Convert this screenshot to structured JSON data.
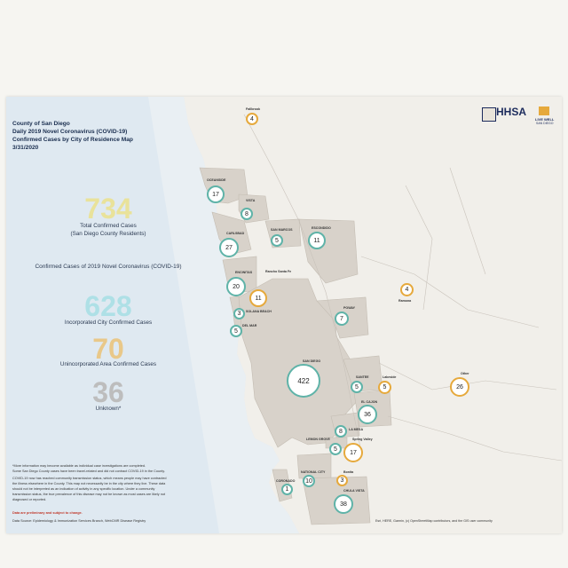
{
  "header": {
    "line1": "County of San Diego",
    "line2": "Daily 2019 Novel Coronavirus (COVID-19)",
    "line3": "Confirmed Cases by City of Residence Map",
    "line4": "3/31/2020"
  },
  "stats": {
    "total": "734",
    "total_caption_1": "Total Confirmed Cases",
    "total_caption_2": "(San Diego County Residents)",
    "section_title": "Confirmed Cases of 2019 Novel Coronavirus (COVID-19)",
    "incorporated": "628",
    "incorporated_caption": "Incorporated City Confirmed Cases",
    "unincorporated": "70",
    "unincorporated_caption": "Unincorporated Area Confirmed Cases",
    "unknown": "36",
    "unknown_caption": "Unknown*"
  },
  "notes": {
    "n1": "*More information may become available as individual case investigations are completed.",
    "n2": "Some San Diego County cases have been travel-related and did not contract COVID-19 in the County.",
    "n3": "COVID-19 now has reached community transmission status, which means people may have contracted",
    "n4": "the illness elsewhere in the County. This map not necessarily be in the city where they live. These data",
    "n5": "should not be interpreted as an indication of activity in any specific location. Under a community",
    "n6": "transmission status, the true prevalence of this disease may not be known as most cases are likely not",
    "n7": "diagnosed or reported.",
    "preliminary": "Data are preliminary and subject to change.",
    "source": "Data Source: Epidemiology & Immunization Services Branch, WebCMR Disease Registry"
  },
  "attribution": "Esri, HERE, Garmin, (c) OpenStreetMap contributors, and the GIS user community",
  "logos": {
    "hhsa": "HHSA",
    "live_well": "LIVE WELL",
    "live_well_sub": "SAN DIEGO"
  },
  "colors": {
    "incorporated": "#5fb3a8",
    "unincorporated": "#e6a93c",
    "total": "#e9e29a",
    "unknown": "#bdbdbd",
    "header_text": "#1a2e4f",
    "preliminary": "#c0392b"
  },
  "locations": [
    {
      "id": "fallbrook",
      "city": "Fallbrook",
      "cases": "4",
      "type": "unincorporated"
    },
    {
      "id": "oceanside",
      "city": "OCEANSIDE",
      "cases": "17",
      "type": "incorporated"
    },
    {
      "id": "vista",
      "city": "VISTA",
      "cases": "8",
      "type": "incorporated"
    },
    {
      "id": "san-marcos",
      "city": "SAN MARCOS",
      "cases": "5",
      "type": "incorporated"
    },
    {
      "id": "escondido",
      "city": "ESCONDIDO",
      "cases": "11",
      "type": "incorporated"
    },
    {
      "id": "carlsbad",
      "city": "CARLSBAD",
      "cases": "27",
      "type": "incorporated"
    },
    {
      "id": "encinitas",
      "city": "ENCINITAS",
      "cases": "20",
      "type": "incorporated"
    },
    {
      "id": "rancho-santa-fe",
      "city": "Rancho Santa Fe",
      "cases": "11",
      "type": "unincorporated"
    },
    {
      "id": "solana-beach",
      "city": "SOLANA BEACH",
      "cases": "3",
      "type": "incorporated"
    },
    {
      "id": "del-mar",
      "city": "DEL MAR",
      "cases": "5",
      "type": "incorporated"
    },
    {
      "id": "poway",
      "city": "POWAY",
      "cases": "7",
      "type": "incorporated"
    },
    {
      "id": "ramona",
      "city": "Ramona",
      "cases": "4",
      "type": "unincorporated"
    },
    {
      "id": "san-diego",
      "city": "SAN DIEGO",
      "cases": "422",
      "type": "incorporated"
    },
    {
      "id": "santee",
      "city": "SANTEE",
      "cases": "5",
      "type": "incorporated"
    },
    {
      "id": "lakeside",
      "city": "Lakeside",
      "cases": "5",
      "type": "unincorporated"
    },
    {
      "id": "other",
      "city": "Other",
      "cases": "26",
      "type": "unincorporated"
    },
    {
      "id": "el-cajon",
      "city": "EL CAJON",
      "cases": "36",
      "type": "incorporated"
    },
    {
      "id": "la-mesa",
      "city": "LA MESA",
      "cases": "8",
      "type": "incorporated"
    },
    {
      "id": "lemon-grove",
      "city": "LEMON GROVE",
      "cases": "5",
      "type": "incorporated"
    },
    {
      "id": "spring-valley",
      "city": "Spring Valley",
      "cases": "17",
      "type": "unincorporated"
    },
    {
      "id": "national-city",
      "city": "NATIONAL CITY",
      "cases": "10",
      "type": "incorporated"
    },
    {
      "id": "coronado",
      "city": "CORONADO",
      "cases": "1",
      "type": "incorporated"
    },
    {
      "id": "bonita",
      "city": "Bonita",
      "cases": "3",
      "type": "unincorporated"
    },
    {
      "id": "chula-vista",
      "city": "CHULA VISTA",
      "cases": "38",
      "type": "incorporated"
    }
  ]
}
